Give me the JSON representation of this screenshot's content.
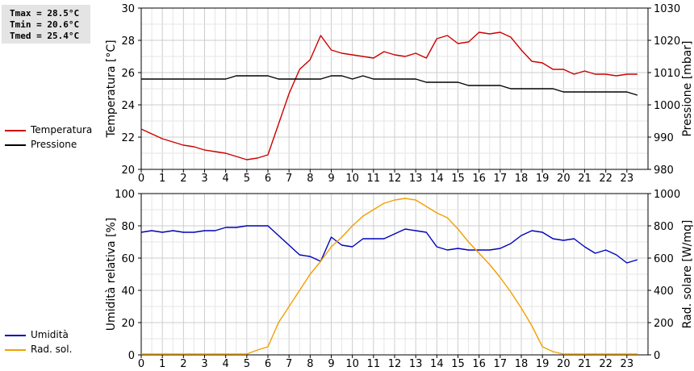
{
  "stats": {
    "tmax": "Tmax = 28.5°C",
    "tmin": "Tmin = 20.6°C",
    "tmed": "Tmed = 25.4°C"
  },
  "chart_data": [
    {
      "type": "line",
      "x_ticks": [
        "0",
        "1",
        "2",
        "3",
        "4",
        "5",
        "6",
        "7",
        "8",
        "9",
        "10",
        "11",
        "12",
        "13",
        "14",
        "15",
        "16",
        "17",
        "18",
        "19",
        "20",
        "21",
        "22",
        "23"
      ],
      "xlim": [
        0,
        24
      ],
      "grid": true,
      "legend_position": "left",
      "ylabel": "Temperatura [°C]",
      "ylim": [
        20,
        30
      ],
      "y_ticks": [
        "20",
        "22",
        "24",
        "26",
        "28",
        "30"
      ],
      "ylabel_right": "Pressione [mbar]",
      "ylim_right": [
        980,
        1030
      ],
      "y_ticks_right": [
        "980",
        "990",
        "1000",
        "1010",
        "1020",
        "1030"
      ],
      "series": [
        {
          "name": "Temperatura",
          "color": "#cc0000",
          "axis": "left",
          "x": [
            0,
            0.5,
            1,
            1.5,
            2,
            2.5,
            3,
            3.5,
            4,
            4.5,
            5,
            5.5,
            6,
            6.5,
            7,
            7.5,
            8,
            8.5,
            9,
            9.5,
            10,
            10.5,
            11,
            11.5,
            12,
            12.5,
            13,
            13.5,
            14,
            14.5,
            15,
            15.5,
            16,
            16.5,
            17,
            17.5,
            18,
            18.5,
            19,
            19.5,
            20,
            20.5,
            21,
            21.5,
            22,
            22.5,
            23,
            23.5
          ],
          "y": [
            22.5,
            22.2,
            21.9,
            21.7,
            21.5,
            21.4,
            21.2,
            21.1,
            21.0,
            20.8,
            20.6,
            20.7,
            20.9,
            22.8,
            24.7,
            26.2,
            26.8,
            28.3,
            27.4,
            27.2,
            27.1,
            27.0,
            26.9,
            27.3,
            27.1,
            27.0,
            27.2,
            26.9,
            28.1,
            28.3,
            27.8,
            27.9,
            28.5,
            28.4,
            28.5,
            28.2,
            27.4,
            26.7,
            26.6,
            26.2,
            26.2,
            25.9,
            26.1,
            25.9,
            25.9,
            25.8,
            25.9,
            25.9
          ]
        },
        {
          "name": "Pressione",
          "color": "#000000",
          "axis": "right",
          "x": [
            0,
            0.5,
            1,
            1.5,
            2,
            2.5,
            3,
            3.5,
            4,
            4.5,
            5,
            5.5,
            6,
            6.5,
            7,
            7.5,
            8,
            8.5,
            9,
            9.5,
            10,
            10.5,
            11,
            11.5,
            12,
            12.5,
            13,
            13.5,
            14,
            14.5,
            15,
            15.5,
            16,
            16.5,
            17,
            17.5,
            18,
            18.5,
            19,
            19.5,
            20,
            20.5,
            21,
            21.5,
            22,
            22.5,
            23,
            23.5
          ],
          "y": [
            1008,
            1008,
            1008,
            1008,
            1008,
            1008,
            1008,
            1008,
            1008,
            1009,
            1009,
            1009,
            1009,
            1008,
            1008,
            1008,
            1008,
            1008,
            1009,
            1009,
            1008,
            1009,
            1008,
            1008,
            1008,
            1008,
            1008,
            1007,
            1007,
            1007,
            1007,
            1006,
            1006,
            1006,
            1006,
            1005,
            1005,
            1005,
            1005,
            1005,
            1004,
            1004,
            1004,
            1004,
            1004,
            1004,
            1004,
            1003
          ]
        }
      ]
    },
    {
      "type": "line",
      "x_ticks": [
        "0",
        "1",
        "2",
        "3",
        "4",
        "5",
        "6",
        "7",
        "8",
        "9",
        "10",
        "11",
        "12",
        "13",
        "14",
        "15",
        "16",
        "17",
        "18",
        "19",
        "20",
        "21",
        "22",
        "23"
      ],
      "xlim": [
        0,
        24
      ],
      "grid": true,
      "legend_position": "left",
      "ylabel": "Umidità relativa [%]",
      "ylim": [
        0,
        100
      ],
      "y_ticks": [
        "0",
        "20",
        "40",
        "60",
        "80",
        "100"
      ],
      "ylabel_right": "Rad. solare [W/mq]",
      "ylim_right": [
        0,
        1000
      ],
      "y_ticks_right": [
        "0",
        "200",
        "400",
        "600",
        "800",
        "1000"
      ],
      "series": [
        {
          "name": "Umidità",
          "color": "#0000bb",
          "axis": "left",
          "x": [
            0,
            0.5,
            1,
            1.5,
            2,
            2.5,
            3,
            3.5,
            4,
            4.5,
            5,
            5.5,
            6,
            6.5,
            7,
            7.5,
            8,
            8.5,
            9,
            9.5,
            10,
            10.5,
            11,
            11.5,
            12,
            12.5,
            13,
            13.5,
            14,
            14.5,
            15,
            15.5,
            16,
            16.5,
            17,
            17.5,
            18,
            18.5,
            19,
            19.5,
            20,
            20.5,
            21,
            21.5,
            22,
            22.5,
            23,
            23.5
          ],
          "y": [
            76,
            77,
            76,
            77,
            76,
            76,
            77,
            77,
            79,
            79,
            80,
            80,
            80,
            74,
            68,
            62,
            61,
            58,
            73,
            68,
            67,
            72,
            72,
            72,
            75,
            78,
            77,
            76,
            67,
            65,
            66,
            65,
            65,
            65,
            66,
            69,
            74,
            77,
            76,
            72,
            71,
            72,
            67,
            63,
            65,
            62,
            57,
            59
          ]
        },
        {
          "name": "Rad. sol.",
          "color": "#f0a000",
          "axis": "right",
          "x": [
            0,
            0.5,
            1,
            1.5,
            2,
            2.5,
            3,
            3.5,
            4,
            4.5,
            5,
            5.5,
            6,
            6.5,
            7,
            7.5,
            8,
            8.5,
            9,
            9.5,
            10,
            10.5,
            11,
            11.5,
            12,
            12.5,
            13,
            13.5,
            14,
            14.5,
            15,
            15.5,
            16,
            16.5,
            17,
            17.5,
            18,
            18.5,
            19,
            19.5,
            20,
            20.5,
            21,
            21.5,
            22,
            22.5,
            23,
            23.5
          ],
          "y": [
            5,
            5,
            5,
            5,
            5,
            5,
            5,
            5,
            5,
            5,
            5,
            30,
            50,
            200,
            300,
            400,
            500,
            580,
            670,
            730,
            800,
            860,
            900,
            940,
            960,
            970,
            960,
            920,
            880,
            850,
            780,
            700,
            630,
            560,
            480,
            390,
            290,
            180,
            50,
            20,
            5,
            5,
            5,
            5,
            5,
            5,
            5,
            5
          ]
        }
      ]
    }
  ]
}
